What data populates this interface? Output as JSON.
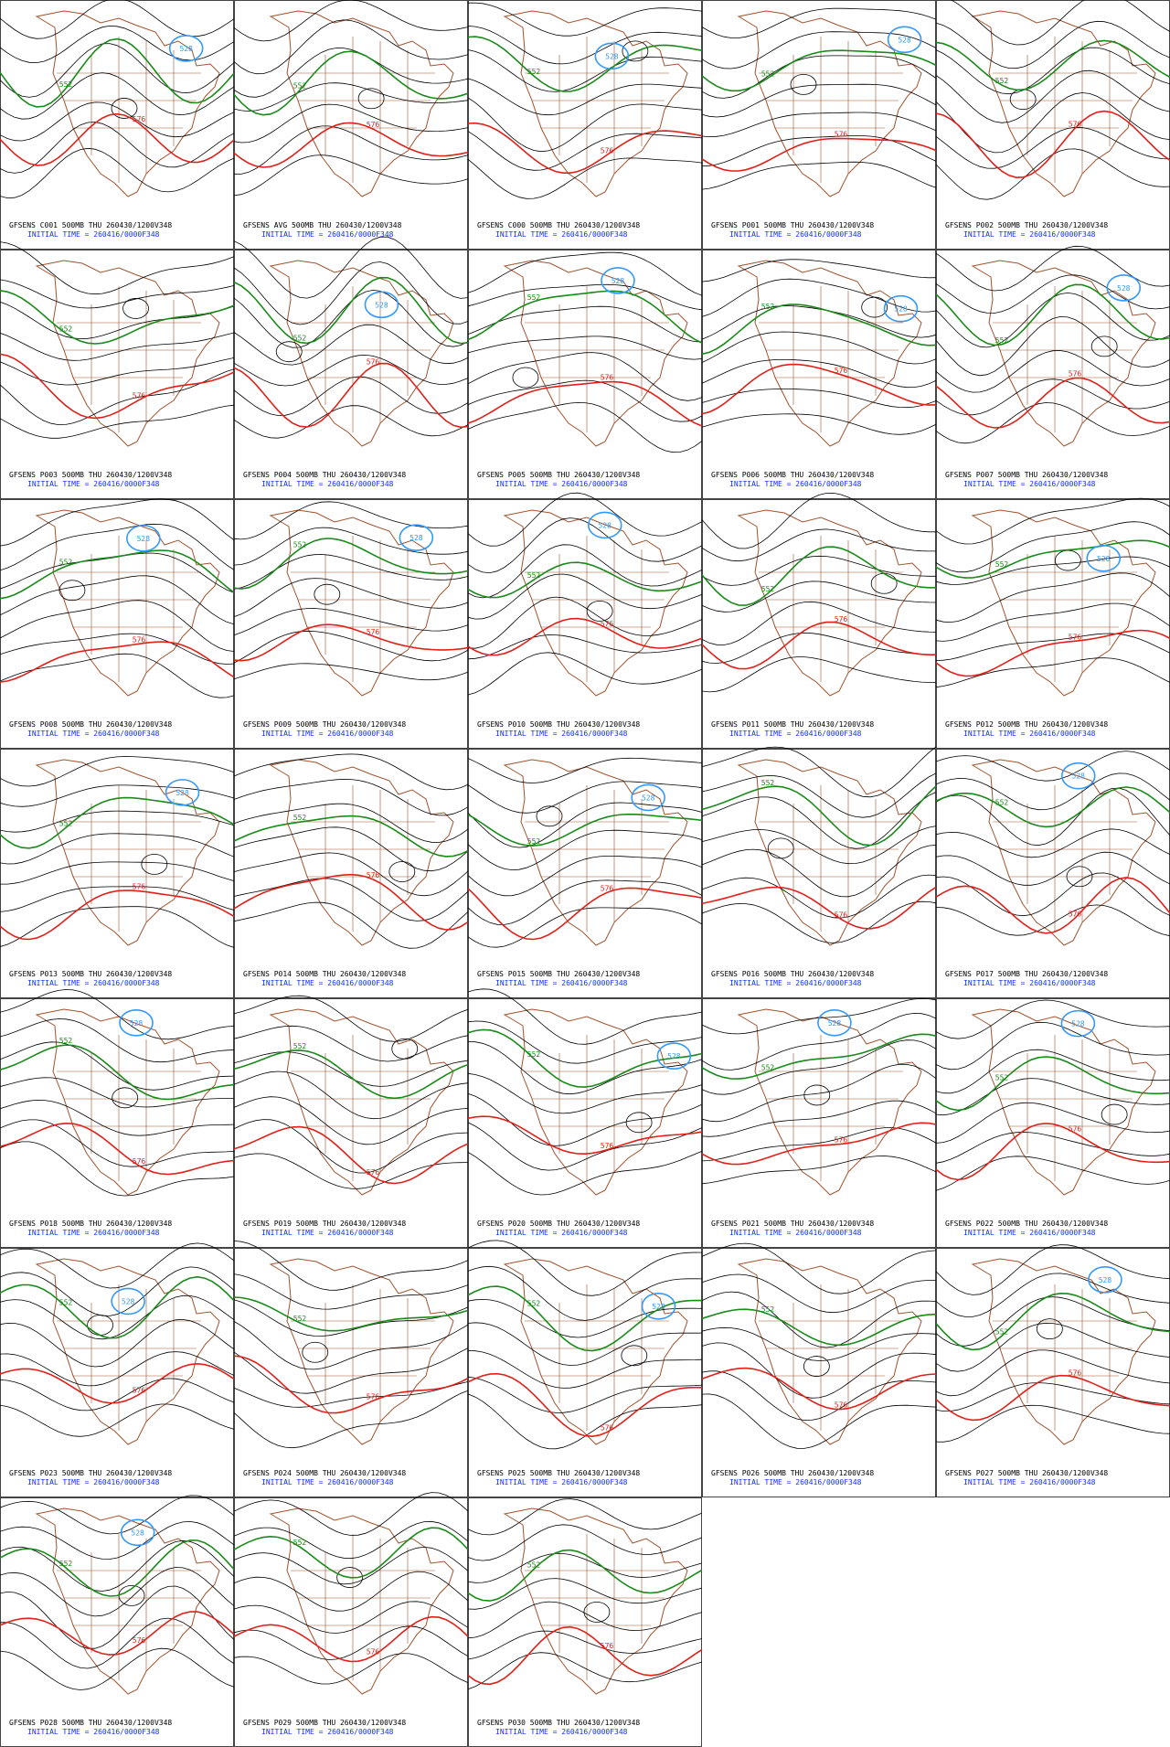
{
  "panels": [
    {
      "label": "GFSENS C001 500MB THU 260430/1200V348",
      "init": "INITIAL TIME = 260416/0000F348",
      "contour_labels": [
        552,
        576,
        528
      ]
    },
    {
      "label": "GFSENS AVG 500MB THU 260430/1200V348",
      "init": "INITIAL TIME = 260416/0000F348",
      "contour_labels": [
        552,
        576
      ]
    },
    {
      "label": "GFSENS C000 500MB THU 260430/1200V348",
      "init": "INITIAL TIME = 260416/0000F348",
      "contour_labels": [
        552,
        576,
        528
      ]
    },
    {
      "label": "GFSENS P001 500MB THU 260430/1200V348",
      "init": "INITIAL TIME = 260416/0000F348",
      "contour_labels": [
        552,
        576,
        528
      ]
    },
    {
      "label": "GFSENS P002 500MB THU 260430/1200V348",
      "init": "INITIAL TIME = 260416/0000F348",
      "contour_labels": [
        552,
        576
      ]
    },
    {
      "label": "GFSENS P003 500MB THU 260430/1200V348",
      "init": "INITIAL TIME = 260416/0000F348",
      "contour_labels": [
        552,
        576
      ]
    },
    {
      "label": "GFSENS P004 500MB THU 260430/1200V348",
      "init": "INITIAL TIME = 260416/0000F348",
      "contour_labels": [
        552,
        576,
        528
      ]
    },
    {
      "label": "GFSENS P005 500MB THU 260430/1200V348",
      "init": "INITIAL TIME = 260416/0000F348",
      "contour_labels": [
        552,
        576,
        528
      ]
    },
    {
      "label": "GFSENS P006 500MB THU 260430/1200V348",
      "init": "INITIAL TIME = 260416/0000F348",
      "contour_labels": [
        552,
        576,
        528
      ]
    },
    {
      "label": "GFSENS P007 500MB THU 260430/1200V348",
      "init": "INITIAL TIME = 260416/0000F348",
      "contour_labels": [
        552,
        576,
        528
      ]
    },
    {
      "label": "GFSENS P008 500MB THU 260430/1200V348",
      "init": "INITIAL TIME = 260416/0000F348",
      "contour_labels": [
        552,
        576,
        528
      ]
    },
    {
      "label": "GFSENS P009 500MB THU 260430/1200V348",
      "init": "INITIAL TIME = 260416/0000F348",
      "contour_labels": [
        552,
        576,
        528
      ]
    },
    {
      "label": "GFSENS P010 500MB THU 260430/1200V348",
      "init": "INITIAL TIME = 260416/0000F348",
      "contour_labels": [
        552,
        576,
        528
      ]
    },
    {
      "label": "GFSENS P011 500MB THU 260430/1200V348",
      "init": "INITIAL TIME = 260416/0000F348",
      "contour_labels": [
        552,
        576
      ]
    },
    {
      "label": "GFSENS P012 500MB THU 260430/1200V348",
      "init": "INITIAL TIME = 260416/0000F348",
      "contour_labels": [
        552,
        576,
        528
      ]
    },
    {
      "label": "GFSENS P013 500MB THU 260430/1200V348",
      "init": "INITIAL TIME = 260416/0000F348",
      "contour_labels": [
        552,
        576,
        528
      ]
    },
    {
      "label": "GFSENS P014 500MB THU 260430/1200V348",
      "init": "INITIAL TIME = 260416/0000F348",
      "contour_labels": [
        552,
        576
      ]
    },
    {
      "label": "GFSENS P015 500MB THU 260430/1200V348",
      "init": "INITIAL TIME = 260416/0000F348",
      "contour_labels": [
        552,
        576,
        528
      ]
    },
    {
      "label": "GFSENS P016 500MB THU 260430/1200V348",
      "init": "INITIAL TIME = 260416/0000F348",
      "contour_labels": [
        552,
        576
      ]
    },
    {
      "label": "GFSENS P017 500MB THU 260430/1200V348",
      "init": "INITIAL TIME = 260416/0000F348",
      "contour_labels": [
        552,
        576,
        528
      ]
    },
    {
      "label": "GFSENS P018 500MB THU 260430/1200V348",
      "init": "INITIAL TIME = 260416/0000F348",
      "contour_labels": [
        552,
        576,
        528
      ]
    },
    {
      "label": "GFSENS P019 500MB THU 260430/1200V348",
      "init": "INITIAL TIME = 260416/0000F348",
      "contour_labels": [
        552,
        576
      ]
    },
    {
      "label": "GFSENS P020 500MB THU 260430/1200V348",
      "init": "INITIAL TIME = 260416/0000F348",
      "contour_labels": [
        552,
        576,
        528
      ]
    },
    {
      "label": "GFSENS P021 500MB THU 260430/1200V348",
      "init": "INITIAL TIME = 260416/0000F348",
      "contour_labels": [
        552,
        576,
        528
      ]
    },
    {
      "label": "GFSENS P022 500MB THU 260430/1200V348",
      "init": "INITIAL TIME = 260416/0000F348",
      "contour_labels": [
        552,
        576,
        528
      ]
    },
    {
      "label": "GFSENS P023 500MB THU 260430/1200V348",
      "init": "INITIAL TIME = 260416/0000F348",
      "contour_labels": [
        552,
        576,
        528
      ]
    },
    {
      "label": "GFSENS P024 500MB THU 260430/1200V348",
      "init": "INITIAL TIME = 260416/0000F348",
      "contour_labels": [
        552,
        576
      ]
    },
    {
      "label": "GFSENS P025 500MB THU 260430/1200V348",
      "init": "INITIAL TIME = 260416/0000F348",
      "contour_labels": [
        552,
        576,
        528
      ]
    },
    {
      "label": "GFSENS P026 500MB THU 260430/1200V348",
      "init": "INITIAL TIME = 260416/0000F348",
      "contour_labels": [
        552,
        576
      ]
    },
    {
      "label": "GFSENS P027 500MB THU 260430/1200V348",
      "init": "INITIAL TIME = 260416/0000F348",
      "contour_labels": [
        552,
        576,
        528
      ]
    },
    {
      "label": "GFSENS P028 500MB THU 260430/1200V348",
      "init": "INITIAL TIME = 260416/0000F348",
      "contour_labels": [
        552,
        576,
        528
      ]
    },
    {
      "label": "GFSENS P029 500MB THU 260430/1200V348",
      "init": "INITIAL TIME = 260416/0000F348",
      "contour_labels": [
        552,
        576
      ]
    },
    {
      "label": "GFSENS P030 500MB THU 260430/1200V348",
      "init": "INITIAL TIME = 260416/0000F348",
      "contour_labels": [
        552,
        576
      ]
    }
  ]
}
